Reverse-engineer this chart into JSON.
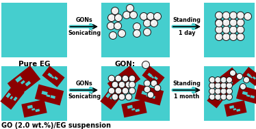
{
  "bg_color": "#45CECE",
  "go_color": "#8B0000",
  "ball_face": "#EFEFEF",
  "ball_edge": "#111111",
  "text_color": "#000000",
  "arrow1_top": [
    "GONs",
    "Sonicating"
  ],
  "arrow2_top": [
    "Standing",
    "1 day"
  ],
  "arrow1_bot": [
    "GONs",
    "Sonicating"
  ],
  "arrow2_bot": [
    "Standing",
    "1 month"
  ],
  "title_top": "Pure EG",
  "label_gon": "GON:",
  "title_bot": "GO (2.0 wt.%)/EG suspension",
  "fig_width": 3.74,
  "fig_height": 1.89,
  "dpi": 100
}
